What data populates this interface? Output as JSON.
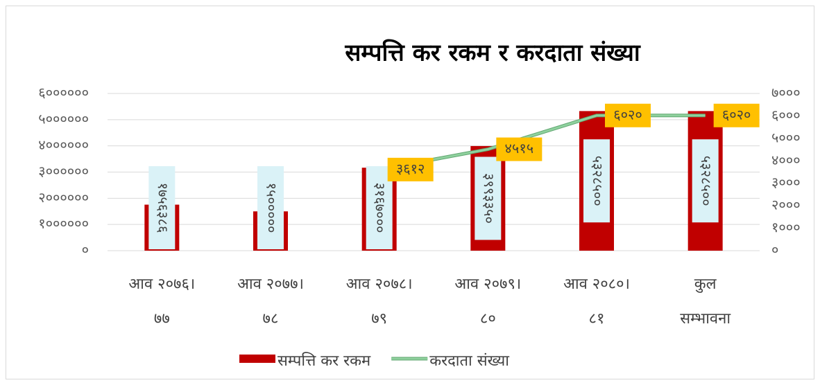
{
  "chart_data": {
    "type": "bar_line",
    "title": "सम्पत्ति कर रकम र करदाता संख्या",
    "categories": [
      "आव २०७६।७७",
      "आव २०७७।७८",
      "आव २०७८।७९",
      "आव २०७९।८०",
      "आव २०८०।८१",
      "कुल सम्भावना"
    ],
    "series": [
      {
        "name": "सम्पत्ति कर रकम",
        "color": "#c00000",
        "type": "bar",
        "values": [
          1756386,
          1500000,
          3167000,
          3993350,
          5328500,
          5328500
        ],
        "value_labels": [
          "१७५६३८६",
          "१५०००००",
          "३१६७०००",
          "३९९३३५०",
          "५३२८५००",
          "५३२८५००"
        ]
      },
      {
        "name": "करदाता संख्या",
        "color": "#8fd19e",
        "type": "line",
        "axis": "y2",
        "values": [
          null,
          null,
          3612,
          4515,
          6020,
          6020
        ],
        "value_labels": [
          null,
          null,
          "३६१२",
          "४५१५",
          "६०२०",
          "६०२०"
        ]
      }
    ],
    "ylim": [
      0,
      6000000
    ],
    "yticks": [
      {
        "value": 0,
        "label": "०"
      },
      {
        "value": 1000000,
        "label": "१००००००"
      },
      {
        "value": 2000000,
        "label": "२००००००"
      },
      {
        "value": 3000000,
        "label": "३००००००"
      },
      {
        "value": 4000000,
        "label": "४००००००"
      },
      {
        "value": 5000000,
        "label": "५००००००"
      },
      {
        "value": 6000000,
        "label": "६००००००"
      }
    ],
    "y2lim": [
      0,
      7000
    ],
    "y2ticks": [
      {
        "value": 0,
        "label": "०"
      },
      {
        "value": 1000,
        "label": "१०००"
      },
      {
        "value": 2000,
        "label": "२०००"
      },
      {
        "value": 3000,
        "label": "३०००"
      },
      {
        "value": 4000,
        "label": "४०००"
      },
      {
        "value": 5000,
        "label": "५०००"
      },
      {
        "value": 6000,
        "label": "६०००"
      },
      {
        "value": 7000,
        "label": "७०००"
      }
    ],
    "grid": true,
    "legend": "bottom"
  }
}
